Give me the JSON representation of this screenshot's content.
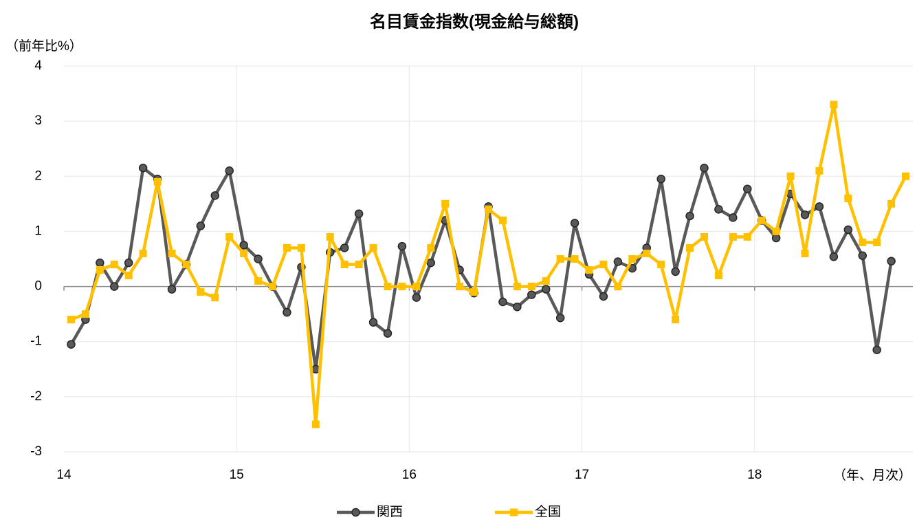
{
  "chart_data": {
    "type": "line",
    "title": "名目賃金指数(現金給与総額)",
    "y_label": "（前年比%）",
    "x_label": "（年、月次）",
    "categories": [
      "14",
      null,
      null,
      null,
      null,
      null,
      null,
      null,
      null,
      null,
      null,
      null,
      "15",
      null,
      null,
      null,
      null,
      null,
      null,
      null,
      null,
      null,
      null,
      null,
      "16",
      null,
      null,
      null,
      null,
      null,
      null,
      null,
      null,
      null,
      null,
      null,
      "17",
      null,
      null,
      null,
      null,
      null,
      null,
      null,
      null,
      null,
      null,
      null,
      "18",
      null,
      null,
      null,
      null,
      null,
      null,
      null,
      null,
      null,
      null
    ],
    "series": [
      {
        "name": "関西",
        "color": "#595959",
        "marker": "circle",
        "values": [
          -1.05,
          -0.6,
          0.43,
          0.0,
          0.43,
          2.15,
          1.95,
          -0.05,
          0.4,
          1.1,
          1.65,
          2.1,
          0.75,
          0.5,
          0.0,
          -0.47,
          0.35,
          -1.5,
          0.62,
          0.7,
          1.32,
          -0.65,
          -0.85,
          0.73,
          -0.2,
          0.43,
          1.2,
          0.3,
          -0.12,
          1.45,
          -0.28,
          -0.37,
          -0.15,
          -0.05,
          -0.57,
          1.15,
          0.22,
          -0.18,
          0.45,
          0.33,
          0.7,
          1.95,
          0.27,
          1.28,
          2.15,
          1.4,
          1.25,
          1.77,
          1.2,
          0.88,
          1.68,
          1.3,
          1.45,
          0.54,
          1.03,
          0.56,
          -1.15,
          0.46,
          null
        ]
      },
      {
        "name": "全国",
        "color": "#FFC000",
        "marker": "square",
        "values": [
          -0.6,
          -0.5,
          0.3,
          0.4,
          0.2,
          0.6,
          1.9,
          0.6,
          0.4,
          -0.1,
          -0.2,
          0.9,
          0.6,
          0.1,
          0.0,
          0.7,
          0.7,
          -2.5,
          0.9,
          0.4,
          0.4,
          0.7,
          0.0,
          0.0,
          0.0,
          0.7,
          1.5,
          0.0,
          -0.1,
          1.4,
          1.2,
          0.0,
          0.0,
          0.1,
          0.5,
          0.5,
          0.3,
          0.4,
          0.0,
          0.5,
          0.6,
          0.4,
          -0.6,
          0.7,
          0.9,
          0.2,
          0.9,
          0.9,
          1.2,
          1.0,
          2.0,
          0.6,
          2.1,
          3.3,
          1.6,
          0.8,
          0.8,
          1.5,
          2.0
        ]
      }
    ],
    "ylim": [
      -3,
      4
    ],
    "yticks": [
      -3,
      -2,
      -1,
      0,
      1,
      2,
      3,
      4
    ],
    "grid": true,
    "legend": "bottom"
  }
}
